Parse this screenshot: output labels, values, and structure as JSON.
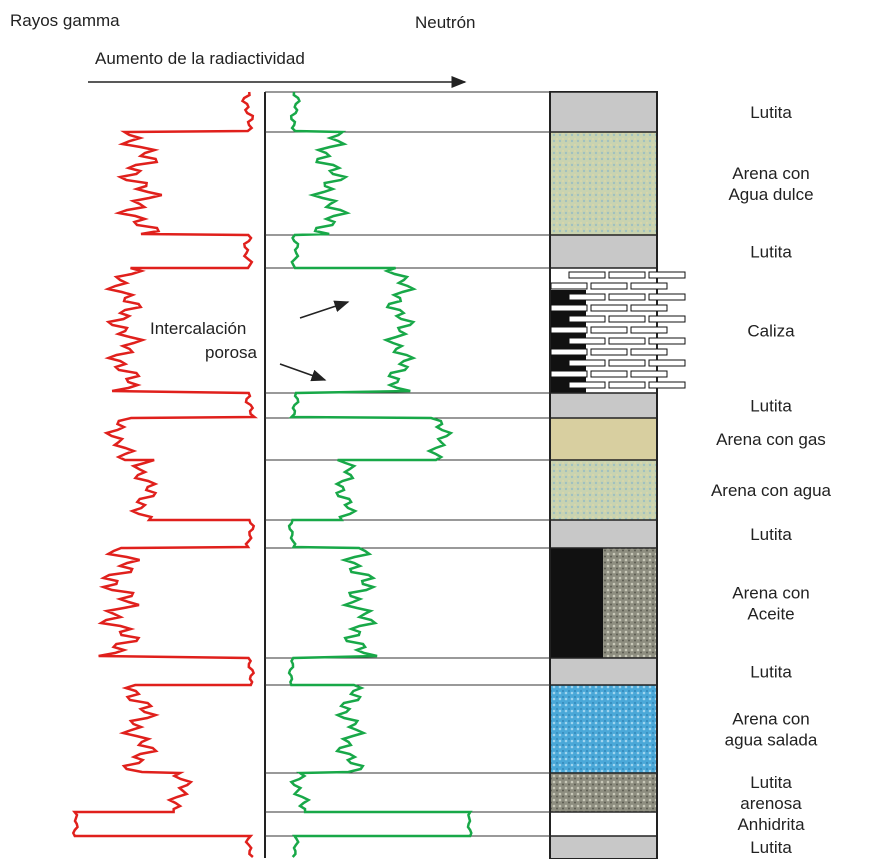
{
  "header": {
    "gamma": "Rayos gamma",
    "neutron": "Neutrón",
    "arrow_label": "Aumento de la radiactividad"
  },
  "annotation": [
    "Intercalación",
    "porosa"
  ],
  "layers": [
    {
      "label": [
        "Lutita"
      ]
    },
    {
      "label": [
        "Arena con",
        "Agua dulce"
      ]
    },
    {
      "label": [
        "Lutita"
      ]
    },
    {
      "label": [
        "Caliza"
      ]
    },
    {
      "label": [
        "Lutita"
      ]
    },
    {
      "label": [
        "Arena con gas"
      ]
    },
    {
      "label": [
        "Arena con agua"
      ]
    },
    {
      "label": [
        "Lutita"
      ]
    },
    {
      "label": [
        "Arena con",
        "Aceite"
      ]
    },
    {
      "label": [
        "Lutita"
      ]
    },
    {
      "label": [
        "Arena con",
        "agua salada"
      ]
    },
    {
      "label": [
        "Lutita",
        "arenosa"
      ]
    },
    {
      "label": [
        "Anhidrita"
      ]
    },
    {
      "label": [
        "Lutita"
      ]
    }
  ]
}
